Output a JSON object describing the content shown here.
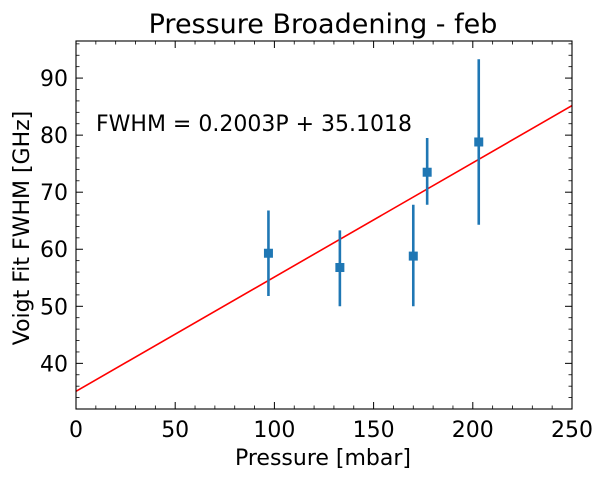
{
  "chart_data": {
    "type": "scatter",
    "title": "Pressure Broadening - feb",
    "xlabel": "Pressure [mbar]",
    "ylabel": "Voigt Fit FWHM [GHz]",
    "xlim": [
      0,
      250
    ],
    "ylim": [
      32,
      96.5
    ],
    "xticks": [
      0,
      50,
      100,
      150,
      200,
      250
    ],
    "xtick_labels": [
      "0",
      "50",
      "100",
      "150",
      "200",
      "250"
    ],
    "yticks": [
      40,
      50,
      60,
      70,
      80,
      90
    ],
    "ytick_labels": [
      "40",
      "50",
      "60",
      "70",
      "80",
      "90"
    ],
    "grid": false,
    "annotation": "FWHM = 0.2003P + 35.1018",
    "series": [
      {
        "type": "errorbar",
        "marker": "square",
        "color": "#1f77b4",
        "points": [
          {
            "x": 97,
            "y": 59.3,
            "yerr_low": 51.8,
            "yerr_high": 66.8
          },
          {
            "x": 133,
            "y": 56.8,
            "yerr_low": 50.0,
            "yerr_high": 63.3
          },
          {
            "x": 170,
            "y": 58.8,
            "yerr_low": 50.0,
            "yerr_high": 67.8
          },
          {
            "x": 177,
            "y": 73.5,
            "yerr_low": 67.8,
            "yerr_high": 79.5
          },
          {
            "x": 203,
            "y": 78.8,
            "yerr_low": 64.3,
            "yerr_high": 93.3
          }
        ]
      },
      {
        "type": "fit-line",
        "color": "#ff0000",
        "slope": 0.2003,
        "intercept": 35.1018
      }
    ]
  }
}
